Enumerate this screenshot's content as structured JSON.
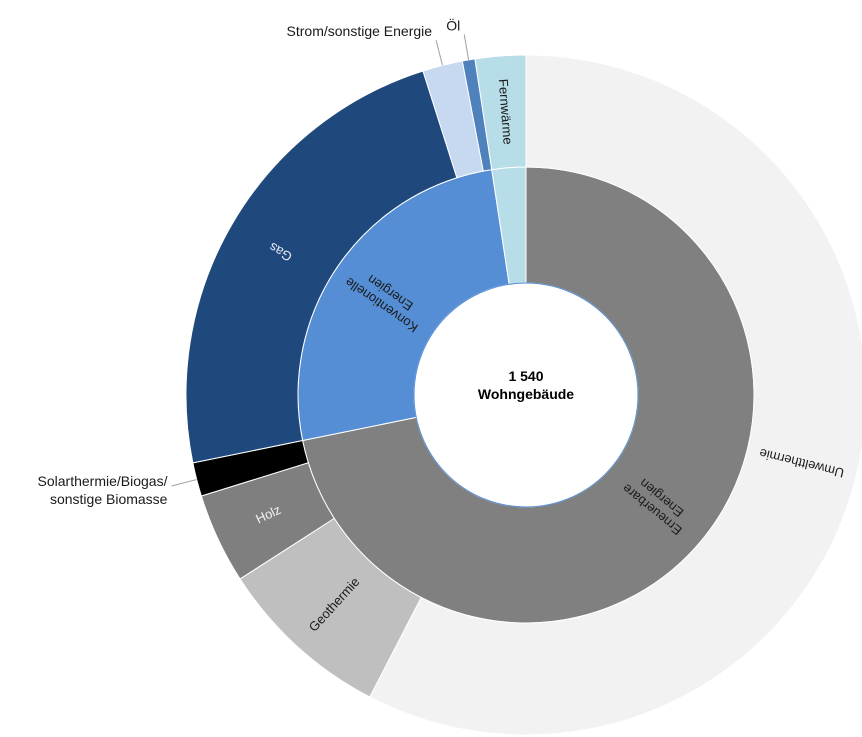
{
  "chart_data": {
    "type": "sunburst",
    "center_label": [
      "1 540",
      "Wohngebäude"
    ],
    "inner": [
      {
        "name": "Erneuerbare Energien",
        "value": 71.8,
        "color": "#808080",
        "text_color": "#1a1a1a"
      },
      {
        "name": "Konventionelle Energien",
        "value": 25.8,
        "color": "#558ed5",
        "text_color": "#1a1a1a"
      },
      {
        "name": "Fernwärme",
        "value": 2.4,
        "color": "#b7dde8",
        "text_color": "#1a1a1a",
        "label_on_outer": true
      }
    ],
    "outer": [
      {
        "name": "Umweltthermie",
        "parent": "Erneuerbare Energien",
        "value": 57.6,
        "color": "#f2f2f2",
        "text_color": "#1a1a1a"
      },
      {
        "name": "Geothermie",
        "parent": "Erneuerbare Energien",
        "value": 8.3,
        "color": "#bfbfbf",
        "text_color": "#1a1a1a"
      },
      {
        "name": "Holz",
        "parent": "Erneuerbare Energien",
        "value": 4.3,
        "color": "#7f7f7f",
        "text_color": "#f2f2f2"
      },
      {
        "name": "Solarthermie/Biogas/ sonstige Biomasse",
        "parent": "Erneuerbare Energien",
        "value": 1.6,
        "color": "#000000",
        "external": true
      },
      {
        "name": "Gas",
        "parent": "Konventionelle Energien",
        "value": 23.3,
        "color": "#1f497d",
        "text_color": "#e8eef7"
      },
      {
        "name": "Strom/sonstige Energie",
        "parent": "Konventionelle Energien",
        "value": 1.9,
        "color": "#c6d9f1",
        "external": true
      },
      {
        "name": "Öl",
        "parent": "Konventionelle Energien",
        "value": 0.6,
        "color": "#4f81bd",
        "external": true
      },
      {
        "name": "Fernwärme",
        "parent": "Fernwärme",
        "value": 2.4,
        "color": "#b7dde8",
        "text_color": "#1a1a1a",
        "radial": true
      }
    ]
  }
}
